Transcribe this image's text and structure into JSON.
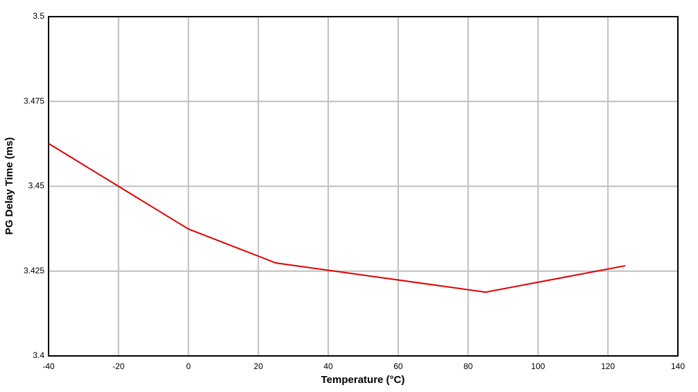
{
  "chart_data": {
    "type": "line",
    "x_label": "Temperature (°C)",
    "y_label": "PG Delay Time (ms)",
    "series": [
      {
        "name": "PG Delay Time",
        "color": "#e00000",
        "x": [
          -40,
          -20,
          0,
          25,
          85,
          125
        ],
        "values": [
          3.4626,
          3.45,
          3.4374,
          3.4274,
          3.4188,
          3.4266
        ]
      }
    ],
    "xlim": [
      -40,
      140
    ],
    "xticks": [
      -40,
      -20,
      0,
      20,
      40,
      60,
      80,
      100,
      120,
      140
    ],
    "ylim": [
      3.4,
      3.5
    ],
    "yticks": [
      3.4,
      3.425,
      3.45,
      3.475,
      3.5
    ],
    "grid": true
  }
}
